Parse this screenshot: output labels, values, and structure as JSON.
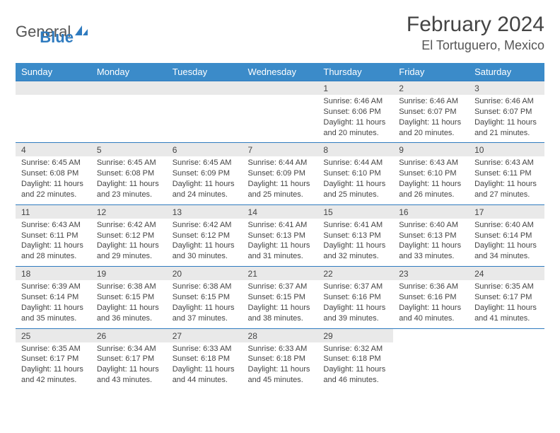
{
  "logo": {
    "text_gray": "General",
    "text_blue": "Blue"
  },
  "header": {
    "title": "February 2024",
    "location": "El Tortuguero, Mexico"
  },
  "colors": {
    "header_bg": "#3b8bc9",
    "header_text": "#ffffff",
    "daynum_bg": "#e9e9e9",
    "row_border": "#2f7bbf",
    "body_text": "#444444",
    "logo_blue": "#2f7bbf"
  },
  "weekdays": [
    "Sunday",
    "Monday",
    "Tuesday",
    "Wednesday",
    "Thursday",
    "Friday",
    "Saturday"
  ],
  "weeks": [
    [
      null,
      null,
      null,
      null,
      {
        "day": "1",
        "sunrise": "Sunrise: 6:46 AM",
        "sunset": "Sunset: 6:06 PM",
        "daylight": "Daylight: 11 hours and 20 minutes."
      },
      {
        "day": "2",
        "sunrise": "Sunrise: 6:46 AM",
        "sunset": "Sunset: 6:07 PM",
        "daylight": "Daylight: 11 hours and 20 minutes."
      },
      {
        "day": "3",
        "sunrise": "Sunrise: 6:46 AM",
        "sunset": "Sunset: 6:07 PM",
        "daylight": "Daylight: 11 hours and 21 minutes."
      }
    ],
    [
      {
        "day": "4",
        "sunrise": "Sunrise: 6:45 AM",
        "sunset": "Sunset: 6:08 PM",
        "daylight": "Daylight: 11 hours and 22 minutes."
      },
      {
        "day": "5",
        "sunrise": "Sunrise: 6:45 AM",
        "sunset": "Sunset: 6:08 PM",
        "daylight": "Daylight: 11 hours and 23 minutes."
      },
      {
        "day": "6",
        "sunrise": "Sunrise: 6:45 AM",
        "sunset": "Sunset: 6:09 PM",
        "daylight": "Daylight: 11 hours and 24 minutes."
      },
      {
        "day": "7",
        "sunrise": "Sunrise: 6:44 AM",
        "sunset": "Sunset: 6:09 PM",
        "daylight": "Daylight: 11 hours and 25 minutes."
      },
      {
        "day": "8",
        "sunrise": "Sunrise: 6:44 AM",
        "sunset": "Sunset: 6:10 PM",
        "daylight": "Daylight: 11 hours and 25 minutes."
      },
      {
        "day": "9",
        "sunrise": "Sunrise: 6:43 AM",
        "sunset": "Sunset: 6:10 PM",
        "daylight": "Daylight: 11 hours and 26 minutes."
      },
      {
        "day": "10",
        "sunrise": "Sunrise: 6:43 AM",
        "sunset": "Sunset: 6:11 PM",
        "daylight": "Daylight: 11 hours and 27 minutes."
      }
    ],
    [
      {
        "day": "11",
        "sunrise": "Sunrise: 6:43 AM",
        "sunset": "Sunset: 6:11 PM",
        "daylight": "Daylight: 11 hours and 28 minutes."
      },
      {
        "day": "12",
        "sunrise": "Sunrise: 6:42 AM",
        "sunset": "Sunset: 6:12 PM",
        "daylight": "Daylight: 11 hours and 29 minutes."
      },
      {
        "day": "13",
        "sunrise": "Sunrise: 6:42 AM",
        "sunset": "Sunset: 6:12 PM",
        "daylight": "Daylight: 11 hours and 30 minutes."
      },
      {
        "day": "14",
        "sunrise": "Sunrise: 6:41 AM",
        "sunset": "Sunset: 6:13 PM",
        "daylight": "Daylight: 11 hours and 31 minutes."
      },
      {
        "day": "15",
        "sunrise": "Sunrise: 6:41 AM",
        "sunset": "Sunset: 6:13 PM",
        "daylight": "Daylight: 11 hours and 32 minutes."
      },
      {
        "day": "16",
        "sunrise": "Sunrise: 6:40 AM",
        "sunset": "Sunset: 6:13 PM",
        "daylight": "Daylight: 11 hours and 33 minutes."
      },
      {
        "day": "17",
        "sunrise": "Sunrise: 6:40 AM",
        "sunset": "Sunset: 6:14 PM",
        "daylight": "Daylight: 11 hours and 34 minutes."
      }
    ],
    [
      {
        "day": "18",
        "sunrise": "Sunrise: 6:39 AM",
        "sunset": "Sunset: 6:14 PM",
        "daylight": "Daylight: 11 hours and 35 minutes."
      },
      {
        "day": "19",
        "sunrise": "Sunrise: 6:38 AM",
        "sunset": "Sunset: 6:15 PM",
        "daylight": "Daylight: 11 hours and 36 minutes."
      },
      {
        "day": "20",
        "sunrise": "Sunrise: 6:38 AM",
        "sunset": "Sunset: 6:15 PM",
        "daylight": "Daylight: 11 hours and 37 minutes."
      },
      {
        "day": "21",
        "sunrise": "Sunrise: 6:37 AM",
        "sunset": "Sunset: 6:15 PM",
        "daylight": "Daylight: 11 hours and 38 minutes."
      },
      {
        "day": "22",
        "sunrise": "Sunrise: 6:37 AM",
        "sunset": "Sunset: 6:16 PM",
        "daylight": "Daylight: 11 hours and 39 minutes."
      },
      {
        "day": "23",
        "sunrise": "Sunrise: 6:36 AM",
        "sunset": "Sunset: 6:16 PM",
        "daylight": "Daylight: 11 hours and 40 minutes."
      },
      {
        "day": "24",
        "sunrise": "Sunrise: 6:35 AM",
        "sunset": "Sunset: 6:17 PM",
        "daylight": "Daylight: 11 hours and 41 minutes."
      }
    ],
    [
      {
        "day": "25",
        "sunrise": "Sunrise: 6:35 AM",
        "sunset": "Sunset: 6:17 PM",
        "daylight": "Daylight: 11 hours and 42 minutes."
      },
      {
        "day": "26",
        "sunrise": "Sunrise: 6:34 AM",
        "sunset": "Sunset: 6:17 PM",
        "daylight": "Daylight: 11 hours and 43 minutes."
      },
      {
        "day": "27",
        "sunrise": "Sunrise: 6:33 AM",
        "sunset": "Sunset: 6:18 PM",
        "daylight": "Daylight: 11 hours and 44 minutes."
      },
      {
        "day": "28",
        "sunrise": "Sunrise: 6:33 AM",
        "sunset": "Sunset: 6:18 PM",
        "daylight": "Daylight: 11 hours and 45 minutes."
      },
      {
        "day": "29",
        "sunrise": "Sunrise: 6:32 AM",
        "sunset": "Sunset: 6:18 PM",
        "daylight": "Daylight: 11 hours and 46 minutes."
      },
      null,
      null
    ]
  ]
}
